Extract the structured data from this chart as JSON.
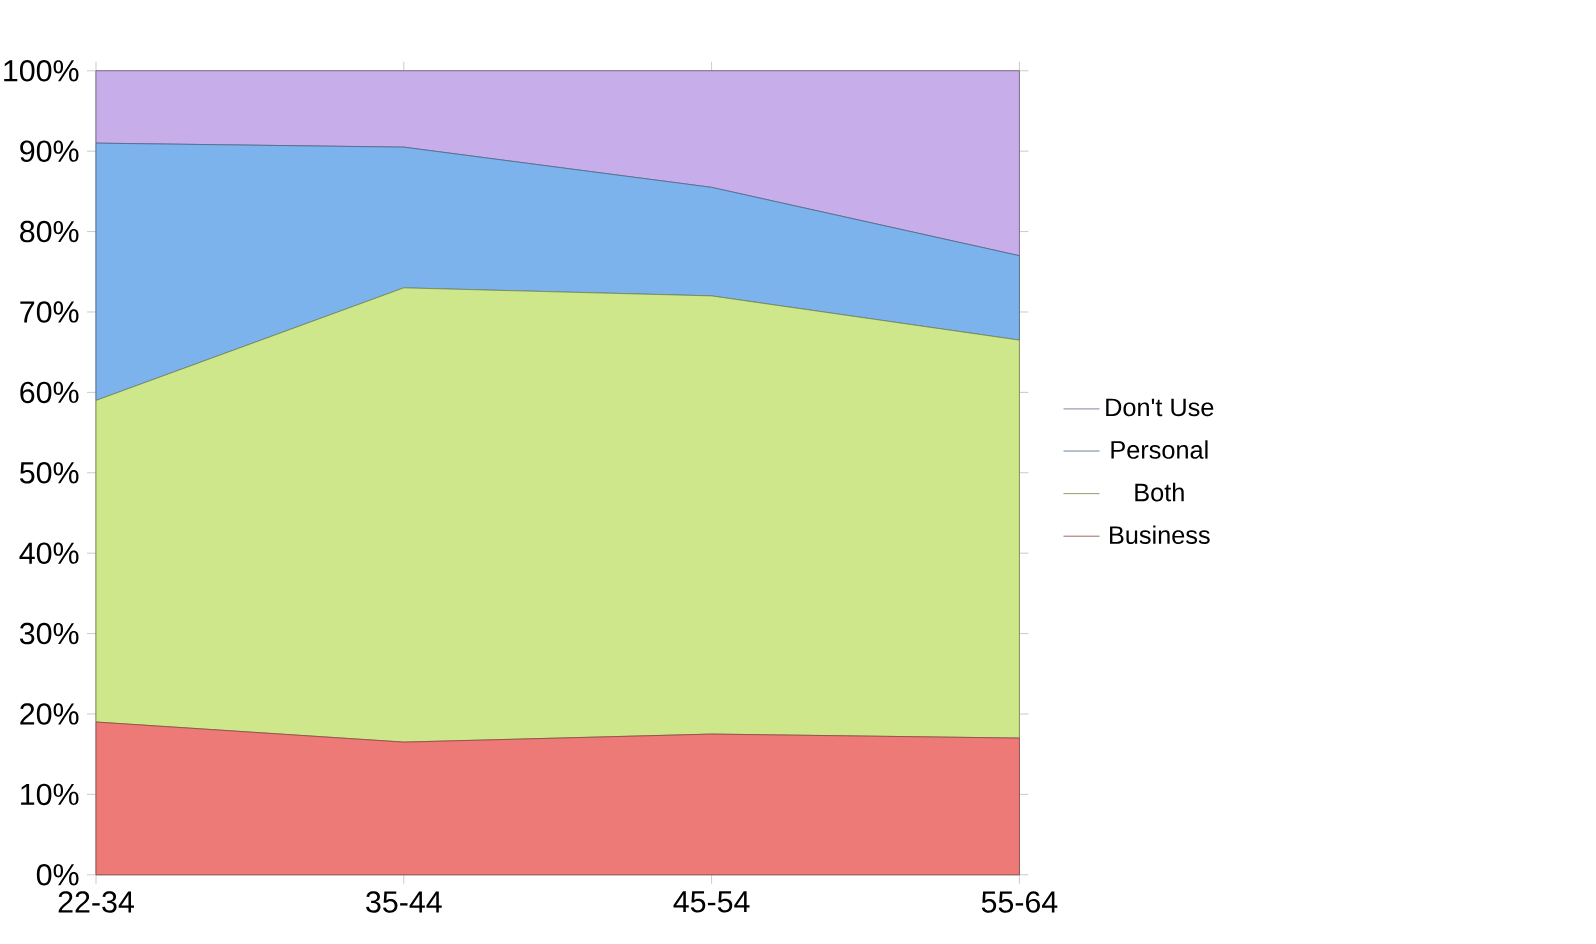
{
  "chart_data": {
    "type": "area",
    "stacked": true,
    "categories": [
      "22-34",
      "35-44",
      "45-54",
      "55-64"
    ],
    "series": [
      {
        "name": "Business",
        "color": "#ee7a78",
        "values": [
          19,
          16.5,
          17.5,
          17
        ]
      },
      {
        "name": "Both",
        "color": "#cde78a",
        "values": [
          40,
          56.5,
          54.5,
          49.5
        ]
      },
      {
        "name": "Personal",
        "color": "#7db3ec",
        "values": [
          32,
          17.5,
          13.5,
          10.5
        ]
      },
      {
        "name": "Don't Use",
        "color": "#c7aeea",
        "values": [
          9,
          9.5,
          14.5,
          23
        ]
      }
    ],
    "ylim": [
      0,
      100
    ],
    "yticks": [
      {
        "value": 0,
        "label": "0%"
      },
      {
        "value": 10,
        "label": "10%"
      },
      {
        "value": 20,
        "label": "20%"
      },
      {
        "value": 30,
        "label": "30%"
      },
      {
        "value": 40,
        "label": "40%"
      },
      {
        "value": 50,
        "label": "50%"
      },
      {
        "value": 60,
        "label": "60%"
      },
      {
        "value": 70,
        "label": "70%"
      },
      {
        "value": 80,
        "label": "80%"
      },
      {
        "value": 90,
        "label": "90%"
      },
      {
        "value": 100,
        "label": "100%"
      }
    ],
    "legend": "right"
  }
}
